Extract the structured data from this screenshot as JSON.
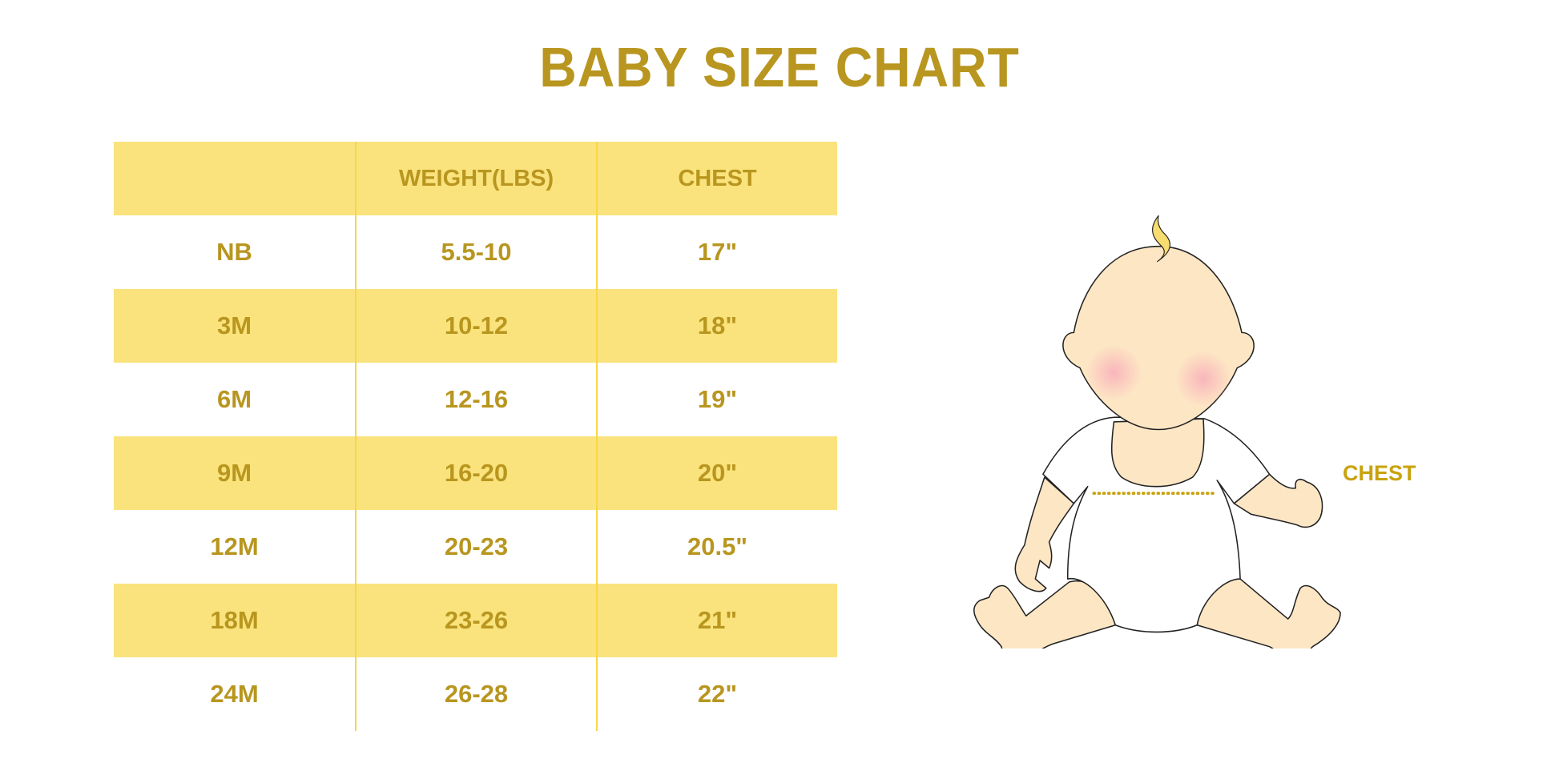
{
  "title": "BABY SIZE CHART",
  "table": {
    "headers": [
      "",
      "WEIGHT(LBS)",
      "CHEST"
    ],
    "rows": [
      [
        "NB",
        "5.5-10",
        "17\""
      ],
      [
        "3M",
        "10-12",
        "18\""
      ],
      [
        "6M",
        "12-16",
        "19\""
      ],
      [
        "9M",
        "16-20",
        "20\""
      ],
      [
        "12M",
        "20-23",
        "20.5\""
      ],
      [
        "18M",
        "23-26",
        "21\""
      ],
      [
        "24M",
        "26-28",
        "22\""
      ]
    ]
  },
  "illustration": {
    "chest_label": "CHEST"
  },
  "colors": {
    "text": "#b8961f",
    "band": "#fae37c",
    "divider": "#f7d64a",
    "skin": "#fde6c4",
    "blush": "#f9b3bb",
    "hair": "#f7dc6f"
  }
}
